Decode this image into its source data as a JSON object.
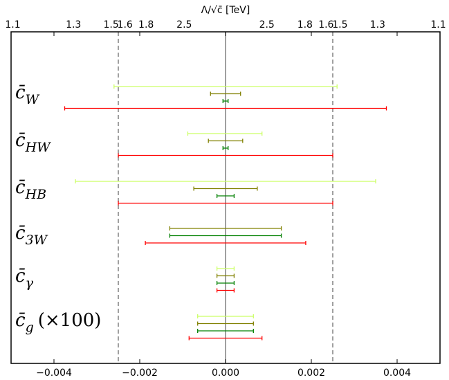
{
  "chart_data": {
    "type": "errorbar",
    "top_axis_label": "Λ/√c̄ [TeV]",
    "bottom_ticks": [
      {
        "value": -0.004,
        "label": "−0.004"
      },
      {
        "value": -0.002,
        "label": "−0.002"
      },
      {
        "value": 0.0,
        "label": "0.000"
      },
      {
        "value": 0.002,
        "label": "0.002"
      },
      {
        "value": 0.004,
        "label": "0.004"
      }
    ],
    "top_ticks": [
      {
        "value": -0.00496,
        "label": "1.1"
      },
      {
        "value": -0.003545,
        "label": "1.3"
      },
      {
        "value": -0.002667,
        "label": "1.5"
      },
      {
        "value": -0.002344,
        "label": "1.6"
      },
      {
        "value": -0.001852,
        "label": "1.8"
      },
      {
        "value": -0.000963,
        "label": "2.5"
      },
      {
        "value": 0.000963,
        "label": "2.5"
      },
      {
        "value": 0.001852,
        "label": "1.8"
      },
      {
        "value": 0.002344,
        "label": "1.6"
      },
      {
        "value": 0.002667,
        "label": "1.5"
      },
      {
        "value": 0.003545,
        "label": "1.3"
      },
      {
        "value": 0.00496,
        "label": "1.1"
      }
    ],
    "xlim": [
      -0.005,
      0.005
    ],
    "reference_lines": {
      "zero": 0.0,
      "dashed": [
        -0.0025,
        0.0025
      ]
    },
    "series_colors": [
      "#ccff66",
      "#808000",
      "#008000",
      "#ff0000"
    ],
    "parameters": [
      {
        "symbol": "c̄",
        "subscript": "W",
        "suffix": "",
        "bars": [
          {
            "color": "#ccff66",
            "low": -0.0026,
            "high": 0.0026
          },
          {
            "color": "#808000",
            "low": -0.00035,
            "high": 0.00035
          },
          {
            "color": "#008000",
            "low": -6e-05,
            "high": 6e-05
          },
          {
            "color": "#ff0000",
            "low": -0.00375,
            "high": 0.00375
          }
        ]
      },
      {
        "symbol": "c̄",
        "subscript": "HW",
        "suffix": "",
        "bars": [
          {
            "color": "#ccff66",
            "low": -0.00088,
            "high": 0.00085
          },
          {
            "color": "#808000",
            "low": -0.0004,
            "high": 0.0004
          },
          {
            "color": "#008000",
            "low": -6e-05,
            "high": 6e-05
          },
          {
            "color": "#ff0000",
            "low": -0.0025,
            "high": 0.0025
          }
        ]
      },
      {
        "symbol": "c̄",
        "subscript": "HB",
        "suffix": "",
        "bars": [
          {
            "color": "#ccff66",
            "low": -0.0035,
            "high": 0.0035
          },
          {
            "color": "#808000",
            "low": -0.00074,
            "high": 0.00074
          },
          {
            "color": "#008000",
            "low": -0.0002,
            "high": 0.0002
          },
          {
            "color": "#ff0000",
            "low": -0.0025,
            "high": 0.0025
          }
        ]
      },
      {
        "symbol": "c̄",
        "subscript": "3W",
        "suffix": "",
        "bars": [
          {
            "color": "#808000",
            "low": -0.0013,
            "high": 0.0013
          },
          {
            "color": "#008000",
            "low": -0.0013,
            "high": 0.0013
          },
          {
            "color": "#ff0000",
            "low": -0.00187,
            "high": 0.00187
          }
        ]
      },
      {
        "symbol": "c̄",
        "subscript": "γ",
        "suffix": "",
        "bars": [
          {
            "color": "#ccff66",
            "low": -0.0002,
            "high": 0.0002
          },
          {
            "color": "#808000",
            "low": -0.0002,
            "high": 0.0002
          },
          {
            "color": "#008000",
            "low": -0.0002,
            "high": 0.0002
          },
          {
            "color": "#ff0000",
            "low": -0.0002,
            "high": 0.0002
          }
        ]
      },
      {
        "symbol": "c̄",
        "subscript": "g",
        "suffix": "(×100)",
        "bars": [
          {
            "color": "#ccff66",
            "low": -0.00065,
            "high": 0.00065
          },
          {
            "color": "#808000",
            "low": -0.00065,
            "high": 0.00065
          },
          {
            "color": "#008000",
            "low": -0.00065,
            "high": 0.00065
          },
          {
            "color": "#ff0000",
            "low": -0.00085,
            "high": 0.00085
          }
        ]
      }
    ]
  }
}
